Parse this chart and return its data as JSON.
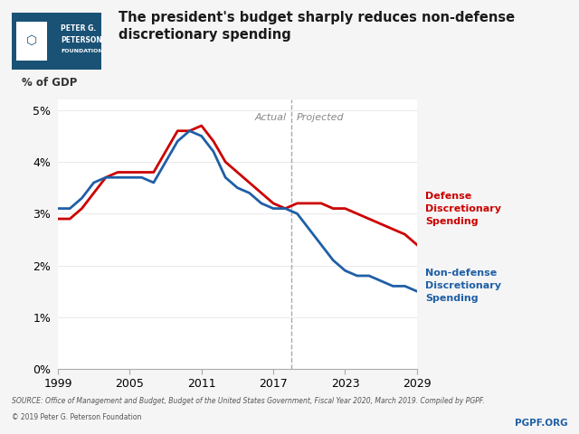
{
  "title_line1": "The president's budget sharply reduces non-defense",
  "title_line2": "discretionary spending",
  "ylabel": "% of GDP",
  "source_text": "SOURCE: Office of Management and Budget, Budget of the United States Government, Fiscal Year 2020, March 2019. Compiled by PGPF.",
  "copyright_text": "© 2019 Peter G. Peterson Foundation",
  "pgpf_text": "PGPF.ORG",
  "actual_label": "Actual",
  "projected_label": "Projected",
  "divider_year": 2018.5,
  "defense_color": "#cc0000",
  "nondefense_color": "#1f5fa6",
  "background_color": "#f5f5f5",
  "plot_bg_color": "#ffffff",
  "ylim": [
    0.0,
    0.052
  ],
  "yticks": [
    0.0,
    0.01,
    0.02,
    0.03,
    0.04,
    0.05
  ],
  "ytick_labels": [
    "0%",
    "1%",
    "2%",
    "3%",
    "4%",
    "5%"
  ],
  "defense_years": [
    1999,
    2000,
    2001,
    2002,
    2003,
    2004,
    2005,
    2006,
    2007,
    2008,
    2009,
    2010,
    2011,
    2012,
    2013,
    2014,
    2015,
    2016,
    2017,
    2018,
    2019,
    2020,
    2021,
    2022,
    2023,
    2024,
    2025,
    2026,
    2027,
    2028,
    2029
  ],
  "defense_values": [
    0.029,
    0.029,
    0.031,
    0.034,
    0.037,
    0.038,
    0.038,
    0.038,
    0.038,
    0.042,
    0.046,
    0.046,
    0.047,
    0.044,
    0.04,
    0.038,
    0.036,
    0.034,
    0.032,
    0.031,
    0.032,
    0.032,
    0.032,
    0.031,
    0.031,
    0.03,
    0.029,
    0.028,
    0.027,
    0.026,
    0.024
  ],
  "nondefense_years": [
    1999,
    2000,
    2001,
    2002,
    2003,
    2004,
    2005,
    2006,
    2007,
    2008,
    2009,
    2010,
    2011,
    2012,
    2013,
    2014,
    2015,
    2016,
    2017,
    2018,
    2019,
    2020,
    2021,
    2022,
    2023,
    2024,
    2025,
    2026,
    2027,
    2028,
    2029
  ],
  "nondefense_values": [
    0.031,
    0.031,
    0.033,
    0.036,
    0.037,
    0.037,
    0.037,
    0.037,
    0.036,
    0.04,
    0.044,
    0.046,
    0.045,
    0.042,
    0.037,
    0.035,
    0.034,
    0.032,
    0.031,
    0.031,
    0.03,
    0.027,
    0.024,
    0.021,
    0.019,
    0.018,
    0.018,
    0.017,
    0.016,
    0.016,
    0.015
  ],
  "xticks": [
    1999,
    2005,
    2011,
    2017,
    2023,
    2029
  ],
  "line_width": 2.0,
  "logo_bg_color": "#1a5276",
  "logo_text_color": "#ffffff",
  "logo_icon_color": "#ffffff"
}
